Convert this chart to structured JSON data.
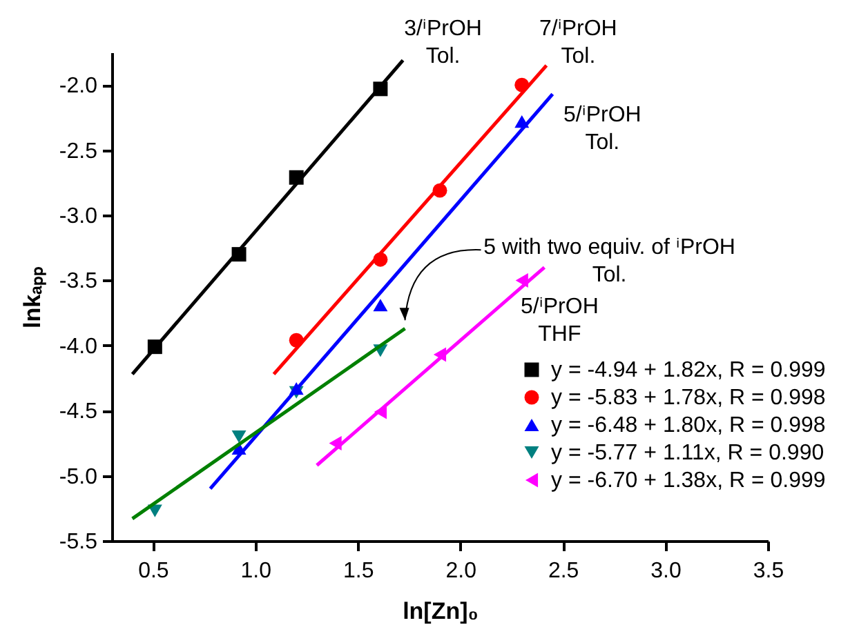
{
  "chart_data": {
    "type": "scatter",
    "xlabel": "ln[Zn]₀",
    "ylabel": "lnkₐₚₚ",
    "xlim": [
      0.3,
      3.5
    ],
    "ylim": [
      -5.5,
      -1.75
    ],
    "xticks": [
      0.5,
      {
        "value": 1,
        "label": "1.0"
      },
      1.5,
      {
        "value": 2,
        "label": "2.0"
      },
      2.5,
      {
        "value": 3,
        "label": "3.0"
      },
      3.5
    ],
    "yticks": [
      -5.5,
      {
        "value": -5,
        "label": "-5.0"
      },
      -4.5,
      {
        "value": -4,
        "label": "-4.0"
      },
      -3.5,
      {
        "value": -3,
        "label": "-3.0"
      },
      -2.5,
      {
        "value": -2,
        "label": "-2.0"
      }
    ],
    "grid": false,
    "legend": "bottom right",
    "series": [
      {
        "name": "y = -4.94 + 1.82x, R = 0.999",
        "color": "#000000",
        "marker": "square",
        "x": [
          0.51,
          0.92,
          1.2,
          1.61
        ],
        "values": [
          -4.01,
          -3.3,
          -2.71,
          -2.03
        ]
      },
      {
        "name": "y = -5.83 + 1.78x, R = 0.998",
        "color": "#ff0000",
        "marker": "circle",
        "x": [
          1.2,
          1.61,
          1.9,
          2.3
        ],
        "values": [
          -3.96,
          -3.34,
          -2.81,
          -2.0
        ]
      },
      {
        "name": "y = -6.48 + 1.80x, R = 0.998",
        "color": "#0000ff",
        "marker": "triangle-up",
        "x": [
          0.92,
          1.2,
          1.61,
          2.3
        ],
        "values": [
          -4.79,
          -4.33,
          -3.69,
          -2.28
        ]
      },
      {
        "name": "y = -5.77 + 1.11x, R = 0.990",
        "color": "#008080",
        "marker": "triangle-down",
        "x": [
          0.51,
          0.92,
          1.2,
          1.61
        ],
        "values": [
          -5.27,
          -4.7,
          -4.36,
          -4.04
        ]
      },
      {
        "name": "y = -6.70 + 1.38x, R = 0.999",
        "color": "#ff00ff",
        "marker": "triangle-left",
        "x": [
          1.39,
          1.61,
          1.9,
          2.3
        ],
        "values": [
          -4.75,
          -4.51,
          -4.07,
          -3.5
        ]
      },
      {
        "type": "line",
        "color": "#000000",
        "x": [
          0.4,
          1.72
        ],
        "values": [
          -4.22,
          -1.81
        ]
      },
      {
        "type": "line",
        "color": "#ff0000",
        "x": [
          1.09,
          2.42
        ],
        "values": [
          -4.22,
          -1.85
        ]
      },
      {
        "type": "line",
        "color": "#0000ff",
        "x": [
          0.78,
          2.45
        ],
        "values": [
          -5.1,
          -2.07
        ]
      },
      {
        "type": "line",
        "color": "#008000",
        "x": [
          0.4,
          1.73
        ],
        "values": [
          -5.33,
          -3.87
        ]
      },
      {
        "type": "line",
        "color": "#ff00ff",
        "x": [
          1.3,
          2.41
        ],
        "values": [
          -4.92,
          -3.4
        ]
      }
    ],
    "annotations": [
      {
        "text": "3/ⁱPrOH\nTol.",
        "x": 1.72,
        "y": -1.81
      },
      {
        "text": "7/ⁱPrOH\nTol.",
        "x": 2.42,
        "y": -1.85
      },
      {
        "text": "5/ⁱPrOH\nTol.",
        "x": 2.45,
        "y": -2.07
      },
      {
        "text": "5 with two equiv. of ⁱPrOH\nTol.",
        "x": 1.73,
        "y": -3.87
      },
      {
        "text": "5/ⁱPrOH\nTHF",
        "x": 2.41,
        "y": -3.4
      }
    ]
  }
}
